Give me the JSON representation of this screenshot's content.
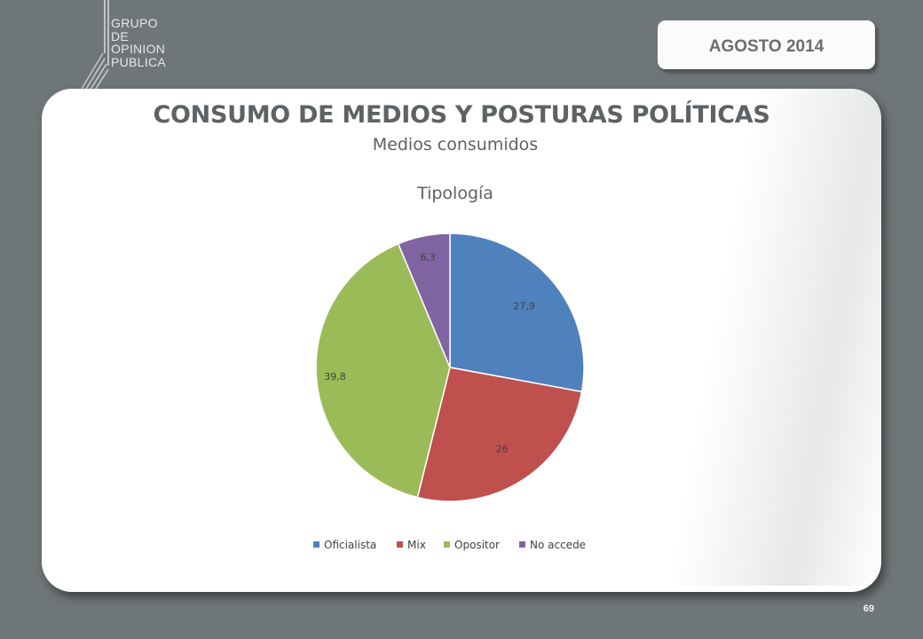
{
  "header": {
    "logo_lines": [
      "GRUPO",
      "DE",
      "OPINION",
      "PUBLICA"
    ],
    "date_label": "AGOSTO 2014"
  },
  "slide": {
    "title": "CONSUMO DE MEDIOS  Y POSTURAS POLÍTICAS",
    "subtitle": "Medios consumidos",
    "page_number": "69"
  },
  "chart_data": {
    "type": "pie",
    "title": "Tipología",
    "categories": [
      "Oficialista",
      "Mix",
      "Opositor",
      "No accede"
    ],
    "values": [
      27.9,
      26,
      39.8,
      6.3
    ],
    "data_labels": [
      "27,9",
      "26",
      "39,8",
      "6,3"
    ],
    "colors": [
      "#4f81bd",
      "#c0504d",
      "#9bbb59",
      "#8064a2"
    ],
    "legend_position": "bottom",
    "start_angle": "12 o'clock",
    "direction": "clockwise"
  }
}
